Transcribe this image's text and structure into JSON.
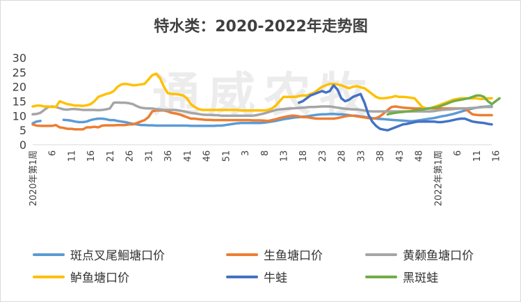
{
  "chart_data": {
    "type": "line",
    "title": "特水类：2020-2022年走势图",
    "ylim": [
      0,
      30
    ],
    "yticks": [
      0,
      5,
      10,
      15,
      20,
      25,
      30
    ],
    "x_count": 120,
    "xtick_labels": [
      "2020年第1周",
      "6",
      "11",
      "16",
      "21",
      "26",
      "31",
      "36",
      "41",
      "46",
      "51",
      "3",
      "8",
      "13",
      "18",
      "23",
      "28",
      "33",
      "38",
      "43",
      "48",
      "2022年第1周",
      "6",
      "11",
      "16"
    ],
    "watermark": "通威农牧",
    "series": [
      {
        "name": "斑点叉尾鮰塘口价",
        "color": "#5b9bd5",
        "values": [
          7.4,
          8,
          8.2,
          null,
          null,
          null,
          null,
          null,
          8.6,
          8.5,
          8.3,
          8,
          7.8,
          7.8,
          8,
          8.5,
          8.8,
          9,
          9,
          8.8,
          8.5,
          8.5,
          8.2,
          8,
          7.8,
          7.5,
          7.2,
          7,
          6.8,
          6.8,
          6.7,
          6.7,
          6.6,
          6.6,
          6.6,
          6.6,
          6.6,
          6.6,
          6.6,
          6.6,
          6.6,
          6.5,
          6.5,
          6.5,
          6.5,
          6.5,
          6.5,
          6.5,
          6.6,
          6.6,
          6.8,
          7,
          7.2,
          7.4,
          7.5,
          7.5,
          7.5,
          7.5,
          7.5,
          7.5,
          7.6,
          7.8,
          8,
          8.2,
          8.5,
          8.8,
          9,
          9.2,
          9.4,
          9.5,
          9.7,
          9.8,
          10,
          10.2,
          10.4,
          10.5,
          10.5,
          10.6,
          10.6,
          10.5,
          10.5,
          10.4,
          10.2,
          10,
          10,
          9.8,
          9.6,
          9.4,
          9.2,
          9,
          8.9,
          8.8,
          8.7,
          8.6,
          8.5,
          8.4,
          8.3,
          8.2,
          8.1,
          8.2,
          8.4,
          8.6,
          8.8,
          9,
          9.2,
          9.5,
          9.8,
          10,
          10.3,
          10.6,
          11,
          11.4,
          11.8,
          12.2,
          12.5,
          12.8,
          13,
          13.1,
          13.2,
          13.2
        ]
      },
      {
        "name": "生鱼塘口价",
        "color": "#ed7d31",
        "values": [
          7,
          6.6,
          6.5,
          6.5,
          6.5,
          6.5,
          6.8,
          6,
          5.8,
          5.5,
          5.5,
          5.3,
          5.3,
          5.3,
          6,
          6,
          6.2,
          6,
          6.6,
          6.7,
          6.7,
          6.7,
          6.8,
          6.8,
          6.8,
          7,
          7,
          7.5,
          8,
          8.5,
          9.5,
          11.5,
          11.8,
          11.8,
          11.8,
          11.5,
          11,
          10.8,
          10.5,
          10,
          9.5,
          9,
          9,
          8.8,
          8.7,
          8.6,
          8.6,
          8.5,
          8.5,
          8.5,
          8.5,
          8.5,
          8.5,
          8.5,
          8.5,
          8.5,
          8.5,
          8.4,
          8.4,
          8.4,
          8.3,
          8.2,
          8.5,
          8.8,
          9.2,
          9.5,
          9.8,
          10,
          10,
          9.8,
          9.5,
          9.5,
          9.3,
          9.1,
          9,
          9,
          9,
          9,
          9,
          9.2,
          9.5,
          9.8,
          10,
          10,
          9.8,
          9.6,
          9.4,
          9.2,
          9,
          9.2,
          9.8,
          10.8,
          12,
          13,
          13.2,
          13,
          12.8,
          12.7,
          12.6,
          12.5,
          12.5,
          12.5,
          12.5,
          12.5,
          12.5,
          12.5,
          12.5,
          12.5,
          12.5,
          12.5,
          12.5,
          12.5,
          12.5,
          11.5,
          10.5,
          10.3,
          10.2,
          10.2,
          10.2,
          10.2
        ]
      },
      {
        "name": "黄颡鱼塘口价",
        "color": "#a5a5a5",
        "values": [
          10.5,
          10.6,
          11,
          12,
          13,
          13.2,
          13,
          12.6,
          12.2,
          12.1,
          12.3,
          12.3,
          12.2,
          12,
          12,
          12,
          12,
          11.9,
          12,
          12.2,
          12.5,
          14.5,
          14.6,
          14.5,
          14.5,
          14.3,
          14,
          13.3,
          12.8,
          12.6,
          12.5,
          12.5,
          12.3,
          12.2,
          12,
          12,
          12,
          12,
          11.8,
          11.6,
          11.3,
          11,
          10.8,
          10.6,
          10.4,
          10.3,
          10.3,
          10.2,
          10.2,
          10,
          10,
          10,
          10,
          10,
          10,
          10,
          10,
          10,
          10.2,
          10.5,
          10.8,
          11.2,
          11.6,
          12,
          12.2,
          12.3,
          12.4,
          12.5,
          12.6,
          12.7,
          12.8,
          12.9,
          13,
          13,
          13.1,
          13.2,
          13.2,
          13.2,
          13,
          12.8,
          12.6,
          12.4,
          12.3,
          12.2,
          12.2,
          12,
          11.8,
          11.6,
          11.5,
          11.5,
          11.5,
          11.5,
          11.5,
          11.5,
          11.5,
          11.5,
          11.5,
          11.5,
          11.5,
          11.5,
          11.5,
          11.5,
          11.5,
          11.5,
          11.6,
          11.8,
          12,
          12.1,
          12.2,
          12.3,
          12.4,
          12.5,
          12.5,
          12.6,
          12.7,
          12.8,
          12.9,
          13,
          13,
          13
        ]
      },
      {
        "name": "鲈鱼塘口价",
        "color": "#ffc000",
        "values": [
          13.2,
          13.5,
          13.5,
          13.2,
          13.2,
          13,
          13,
          15,
          14.5,
          14,
          13.8,
          13.5,
          13.5,
          13.4,
          13.6,
          14,
          15,
          16.5,
          17,
          17.5,
          17.8,
          18.5,
          20,
          20.8,
          21,
          20.8,
          20.5,
          20.6,
          20.8,
          21,
          22.5,
          24,
          24.5,
          23,
          20,
          17.8,
          17.5,
          17.5,
          17.3,
          17,
          16,
          14,
          13,
          12.3,
          12,
          12,
          12,
          12,
          12,
          12,
          12,
          12,
          12,
          12,
          11.8,
          11.8,
          11.8,
          11.8,
          11.8,
          11.8,
          11.8,
          12,
          12.5,
          13.5,
          15,
          16.5,
          16.5,
          16.5,
          16.5,
          16.8,
          17,
          17,
          17.5,
          18,
          19,
          20,
          20.5,
          21,
          21,
          20.8,
          20.5,
          20,
          19.5,
          20,
          20.2,
          19.8,
          19.5,
          18.5,
          17.5,
          16.5,
          16,
          16,
          16.2,
          16.4,
          16.8,
          16.5,
          16.5,
          16.4,
          16.2,
          16,
          14.5,
          13,
          12.5,
          12.5,
          13,
          13.5,
          14,
          14.5,
          15,
          15.5,
          15.8,
          16,
          16,
          16,
          16,
          16,
          15.8,
          15.8,
          16,
          16
        ]
      },
      {
        "name": "牛蛙",
        "color": "#4472c4",
        "values": [
          null,
          null,
          null,
          null,
          null,
          null,
          null,
          null,
          null,
          null,
          null,
          null,
          null,
          null,
          null,
          null,
          null,
          null,
          null,
          null,
          null,
          null,
          null,
          null,
          null,
          null,
          null,
          null,
          null,
          null,
          null,
          null,
          null,
          null,
          null,
          null,
          null,
          null,
          null,
          null,
          null,
          null,
          null,
          null,
          null,
          null,
          null,
          null,
          null,
          null,
          null,
          null,
          null,
          null,
          null,
          null,
          null,
          null,
          null,
          null,
          null,
          null,
          null,
          null,
          null,
          null,
          null,
          null,
          null,
          14.5,
          15,
          16,
          17,
          17.5,
          18,
          18.5,
          18,
          18.5,
          20.5,
          19,
          16,
          15,
          15.5,
          16.5,
          17,
          17.5,
          14.5,
          10.5,
          8,
          6.5,
          5.5,
          5.2,
          5,
          5.5,
          6,
          6.5,
          7,
          7.2,
          7.5,
          7.8,
          8,
          8,
          8,
          8,
          8,
          7.8,
          7.8,
          8,
          8.2,
          8.5,
          8.8,
          9,
          9,
          8.5,
          8,
          7.8,
          7.6,
          7.5,
          7.2,
          7
        ]
      },
      {
        "name": "黑斑蛙",
        "color": "#70ad47",
        "values": [
          null,
          null,
          null,
          null,
          null,
          null,
          null,
          null,
          null,
          null,
          null,
          null,
          null,
          null,
          null,
          null,
          null,
          null,
          null,
          null,
          null,
          null,
          null,
          null,
          null,
          null,
          null,
          null,
          null,
          null,
          null,
          null,
          null,
          null,
          null,
          null,
          null,
          null,
          null,
          null,
          null,
          null,
          null,
          null,
          null,
          null,
          null,
          null,
          null,
          null,
          null,
          null,
          null,
          null,
          null,
          null,
          null,
          null,
          null,
          null,
          null,
          null,
          null,
          null,
          null,
          null,
          null,
          null,
          null,
          null,
          null,
          null,
          null,
          null,
          null,
          null,
          null,
          null,
          null,
          null,
          null,
          null,
          null,
          null,
          null,
          null,
          null,
          null,
          null,
          null,
          null,
          null,
          10.5,
          10.8,
          11,
          11.2,
          11.3,
          11.5,
          11.6,
          11.8,
          12,
          12.2,
          12.4,
          12.6,
          12.8,
          13,
          13.5,
          14,
          14.5,
          15,
          15.3,
          15.5,
          15.8,
          16,
          16.5,
          17,
          17,
          16.5,
          15,
          14,
          15,
          16
        ]
      }
    ]
  }
}
